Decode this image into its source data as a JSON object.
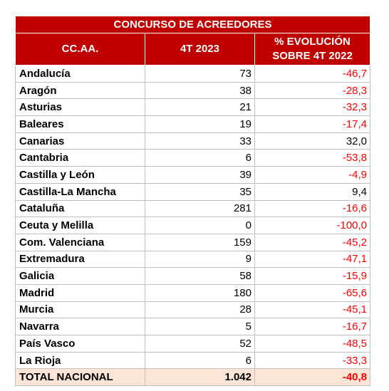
{
  "table": {
    "title": "CONCURSO DE ACREEDORES",
    "headers": [
      "CC.AA.",
      "4T 2023",
      "% EVOLUCIÓN\nSOBRE 4T 2022"
    ],
    "header_lines": {
      "col3_line1": "% EVOLUCIÓN",
      "col3_line2": "SOBRE 4T 2022"
    },
    "rows": [
      {
        "region": "Andalucía",
        "value": "73",
        "change": "-46,7"
      },
      {
        "region": "Aragón",
        "value": "38",
        "change": "-28,3"
      },
      {
        "region": "Asturias",
        "value": "21",
        "change": "-32,3"
      },
      {
        "region": "Baleares",
        "value": "19",
        "change": "-17,4"
      },
      {
        "region": "Canarias",
        "value": "33",
        "change": "32,0"
      },
      {
        "region": "Cantabria",
        "value": "6",
        "change": "-53,8"
      },
      {
        "region": "Castilla y León",
        "value": "39",
        "change": "-4,9"
      },
      {
        "region": "Castilla-La Mancha",
        "value": "35",
        "change": "9,4"
      },
      {
        "region": "Cataluña",
        "value": "281",
        "change": "-16,6"
      },
      {
        "region": "Ceuta y Melilla",
        "value": "0",
        "change": "-100,0"
      },
      {
        "region": "Com. Valenciana",
        "value": "159",
        "change": "-45,2"
      },
      {
        "region": "Extremadura",
        "value": "9",
        "change": "-47,1"
      },
      {
        "region": "Galicia",
        "value": "58",
        "change": "-15,9"
      },
      {
        "region": "Madrid",
        "value": "180",
        "change": "-65,6"
      },
      {
        "region": "Murcia",
        "value": "28",
        "change": "-45,1"
      },
      {
        "region": "Navarra",
        "value": "5",
        "change": "-16,7"
      },
      {
        "region": "País Vasco",
        "value": "52",
        "change": "-48,5"
      },
      {
        "region": "La Rioja",
        "value": "6",
        "change": "-33,3"
      }
    ],
    "total": {
      "region": "TOTAL NACIONAL",
      "value": "1.042",
      "change": "-40,8"
    }
  },
  "colors": {
    "header_bg": "#c00000",
    "header_text": "#ffffff",
    "negative_text": "#ff0000",
    "total_bg": "#fbe5d6"
  }
}
